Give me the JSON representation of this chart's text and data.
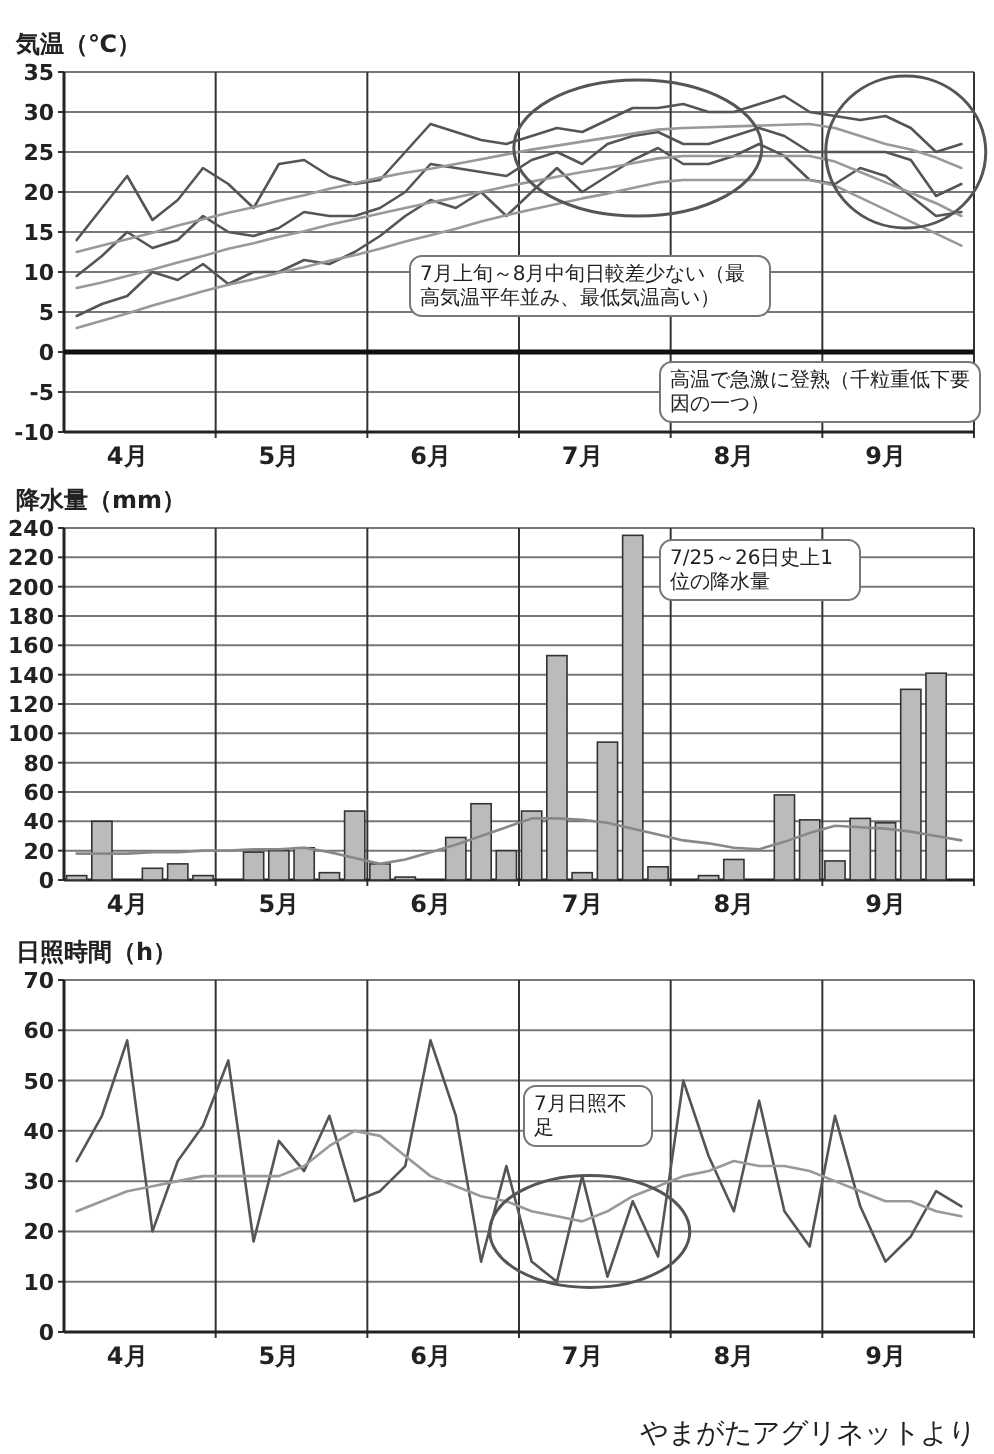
{
  "chart_data": [
    {
      "type": "line",
      "title": "気温（℃）",
      "ylim": [
        -10,
        35
      ],
      "yticks": [
        -10,
        -5,
        0,
        5,
        10,
        15,
        20,
        25,
        30,
        35
      ],
      "categories": [
        null,
        null,
        "4月",
        null,
        null,
        null,
        null,
        null,
        "5月",
        null,
        null,
        null,
        null,
        null,
        "6月",
        null,
        null,
        null,
        null,
        null,
        "7月",
        null,
        null,
        null,
        null,
        null,
        "8月",
        null,
        null,
        null,
        null,
        null,
        "9月",
        null,
        null,
        null
      ],
      "grid": true,
      "ref_lines": [
        {
          "axis": "y",
          "value": 0,
          "color": "#111111"
        }
      ],
      "series": [
        {
          "color": "#555555",
          "values": [
            14,
            18,
            22,
            16.5,
            19,
            23,
            21,
            18,
            23.5,
            24,
            22,
            21,
            21.5,
            25,
            28.5,
            27.5,
            26.5,
            26,
            27,
            28,
            27.5,
            29,
            30.5,
            30.5,
            31,
            30,
            30,
            31,
            32,
            30,
            29.5,
            29,
            29.5,
            28,
            25,
            26
          ]
        },
        {
          "color": "#555555",
          "values": [
            9.5,
            12,
            15,
            13,
            14,
            17,
            15,
            14.5,
            15.5,
            17.5,
            17,
            17,
            18,
            20,
            23.5,
            23,
            22.5,
            22,
            24,
            25,
            23.5,
            26,
            27,
            27.5,
            26,
            26,
            27,
            28,
            27,
            25,
            25,
            25,
            25,
            24,
            19.5,
            21
          ]
        },
        {
          "color": "#555555",
          "values": [
            4.5,
            6,
            7,
            10,
            9,
            11,
            8.5,
            10,
            10,
            11.5,
            11,
            12.5,
            14.5,
            17,
            19,
            18,
            20,
            17,
            20,
            23,
            20,
            22,
            24,
            25.5,
            23.5,
            23.5,
            24.5,
            26,
            24.5,
            21.5,
            21,
            23,
            22,
            19.5,
            17,
            17.5
          ]
        },
        {
          "color": "#999999",
          "values": [
            12.5,
            13.3,
            14.1,
            14.9,
            15.8,
            16.6,
            17.4,
            18.1,
            18.9,
            19.6,
            20.4,
            21.1,
            21.8,
            22.4,
            22.9,
            23.5,
            24.1,
            24.7,
            25.3,
            25.8,
            26.3,
            26.8,
            27.3,
            27.8,
            28,
            28.1,
            28.2,
            28.3,
            28.4,
            28.5,
            28,
            27,
            26,
            25.3,
            24.3,
            23
          ]
        },
        {
          "color": "#999999",
          "values": [
            8,
            8.7,
            9.5,
            10.3,
            11.2,
            12,
            12.9,
            13.6,
            14.4,
            15.1,
            15.9,
            16.6,
            17.3,
            18,
            18.7,
            19.3,
            20,
            20.7,
            21.3,
            21.9,
            22.5,
            23,
            23.6,
            24.2,
            24.5,
            24.5,
            24.5,
            24.5,
            24.5,
            24.5,
            23.8,
            22.5,
            21.2,
            19.9,
            18.6,
            17
          ]
        },
        {
          "color": "#999999",
          "values": [
            3,
            3.9,
            4.8,
            5.8,
            6.7,
            7.6,
            8.4,
            9.1,
            9.9,
            10.6,
            11.4,
            12.1,
            12.9,
            13.8,
            14.6,
            15.4,
            16.3,
            17.1,
            17.8,
            18.5,
            19.2,
            19.8,
            20.5,
            21.2,
            21.5,
            21.5,
            21.5,
            21.5,
            21.5,
            21.5,
            20.8,
            19.3,
            17.8,
            16.3,
            14.8,
            13.3
          ]
        }
      ],
      "annotations": [
        "7月上旬～8月中旬日較差少ない（最高気温平年並み、最低気温高い）",
        "高温で急激に登熟（千粒重低下要因の一つ）"
      ]
    },
    {
      "type": "bar",
      "title": "降水量（mm）",
      "ylim": [
        0,
        240
      ],
      "yticks": [
        0,
        20,
        40,
        60,
        80,
        100,
        120,
        140,
        160,
        180,
        200,
        220,
        240
      ],
      "categories": [
        null,
        null,
        "4月",
        null,
        null,
        null,
        null,
        null,
        "5月",
        null,
        null,
        null,
        null,
        null,
        "6月",
        null,
        null,
        null,
        null,
        null,
        "7月",
        null,
        null,
        null,
        null,
        null,
        "8月",
        null,
        null,
        null,
        null,
        null,
        "9月",
        null,
        null,
        null
      ],
      "grid": true,
      "series": [
        {
          "color": "#bbbbbb",
          "values": [
            3,
            40,
            0,
            8,
            11,
            3,
            0,
            19,
            20,
            22,
            5,
            47,
            11,
            2,
            0,
            29,
            52,
            20,
            47,
            153,
            5,
            94,
            235,
            9,
            0,
            3,
            14,
            0,
            58,
            41,
            13,
            42,
            39,
            130,
            141,
            0
          ]
        },
        {
          "type": "line",
          "color": "#888888",
          "values": [
            18,
            18,
            18,
            19,
            19,
            20,
            20,
            21,
            21,
            22,
            19,
            15,
            11,
            14,
            19,
            24,
            30,
            36,
            42,
            42,
            41,
            39,
            35,
            31,
            27,
            25,
            22,
            21,
            26,
            32,
            37,
            36,
            35,
            33,
            30,
            27
          ]
        }
      ],
      "annotations": [
        "7/25～26日史上1位の降水量"
      ]
    },
    {
      "type": "line",
      "title": "日照時間（h）",
      "ylim": [
        0,
        70
      ],
      "yticks": [
        0,
        10,
        20,
        30,
        40,
        50,
        60,
        70
      ],
      "categories": [
        null,
        null,
        "4月",
        null,
        null,
        null,
        null,
        null,
        "5月",
        null,
        null,
        null,
        null,
        null,
        "6月",
        null,
        null,
        null,
        null,
        null,
        "7月",
        null,
        null,
        null,
        null,
        null,
        "8月",
        null,
        null,
        null,
        null,
        null,
        "9月",
        null,
        null,
        null
      ],
      "grid": true,
      "series": [
        {
          "color": "#555555",
          "values": [
            34,
            43,
            58,
            20,
            34,
            41,
            54,
            18,
            38,
            32,
            43,
            26,
            28,
            33,
            58,
            43,
            14,
            33,
            14,
            10,
            31,
            11,
            26,
            15,
            50,
            35,
            24,
            46,
            24,
            17,
            43,
            25,
            14,
            19,
            28,
            25
          ]
        },
        {
          "color": "#999999",
          "values": [
            24,
            26,
            28,
            29,
            30,
            31,
            31,
            31,
            31,
            33,
            37,
            40,
            39,
            35,
            31,
            29,
            27,
            26,
            24,
            23,
            22,
            24,
            27,
            29,
            31,
            32,
            34,
            33,
            33,
            32,
            30,
            28,
            26,
            26,
            24,
            23
          ]
        }
      ],
      "annotations": [
        "7月日照不足",
        "やまがたアグリネットより"
      ]
    }
  ]
}
